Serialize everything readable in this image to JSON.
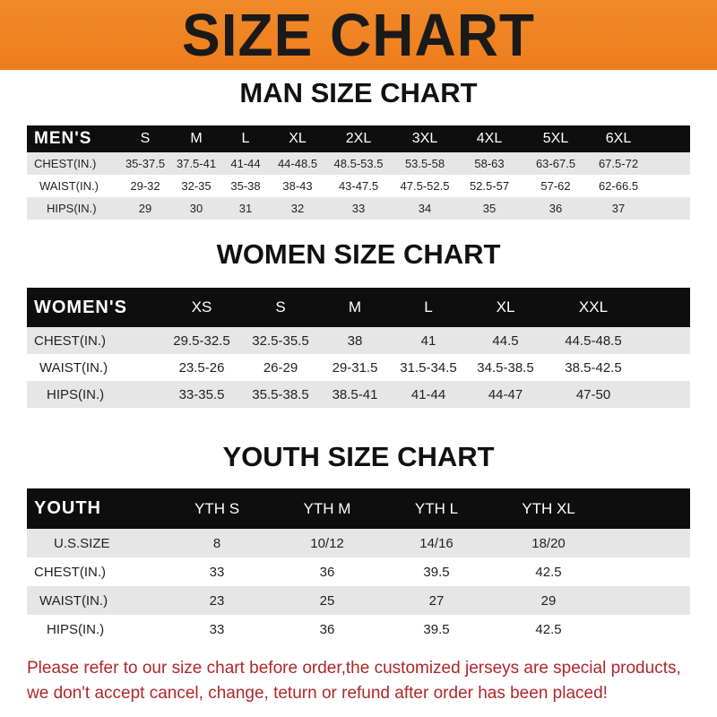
{
  "banner": "SIZE CHART",
  "men": {
    "title": "MAN SIZE CHART",
    "header": "MEN'S",
    "sizes": [
      "S",
      "M",
      "L",
      "XL",
      "2XL",
      "3XL",
      "4XL",
      "5XL",
      "6XL"
    ],
    "rows": [
      {
        "label": "CHEST(IN.)",
        "values": [
          "35-37.5",
          "37.5-41",
          "41-44",
          "44-48.5",
          "48.5-53.5",
          "53.5-58",
          "58-63",
          "63-67.5",
          "67.5-72"
        ]
      },
      {
        "label": "WAIST(IN.)",
        "values": [
          "29-32",
          "32-35",
          "35-38",
          "38-43",
          "43-47.5",
          "47.5-52.5",
          "52.5-57",
          "57-62",
          "62-66.5"
        ]
      },
      {
        "label": "HIPS(IN.)",
        "values": [
          "29",
          "30",
          "31",
          "32",
          "33",
          "34",
          "35",
          "36",
          "37"
        ]
      }
    ]
  },
  "women": {
    "title": "WOMEN SIZE CHART",
    "header": "WOMEN'S",
    "sizes": [
      "XS",
      "S",
      "M",
      "L",
      "XL",
      "XXL"
    ],
    "rows": [
      {
        "label": "CHEST(IN.)",
        "values": [
          "29.5-32.5",
          "32.5-35.5",
          "38",
          "41",
          "44.5",
          "44.5-48.5"
        ]
      },
      {
        "label": "WAIST(IN.)",
        "values": [
          "23.5-26",
          "26-29",
          "29-31.5",
          "31.5-34.5",
          "34.5-38.5",
          "38.5-42.5"
        ]
      },
      {
        "label": "HIPS(IN.)",
        "values": [
          "33-35.5",
          "35.5-38.5",
          "38.5-41",
          "41-44",
          "44-47",
          "47-50"
        ]
      }
    ]
  },
  "youth": {
    "title": "YOUTH SIZE CHART",
    "header": "YOUTH",
    "sizes": [
      "YTH S",
      "YTH M",
      "YTH L",
      "YTH XL"
    ],
    "rows": [
      {
        "label": "U.S.SIZE",
        "values": [
          "8",
          "10/12",
          "14/16",
          "18/20"
        ]
      },
      {
        "label": "CHEST(IN.)",
        "values": [
          "33",
          "36",
          "39.5",
          "42.5"
        ]
      },
      {
        "label": "WAIST(IN.)",
        "values": [
          "23",
          "25",
          "27",
          "29"
        ]
      },
      {
        "label": "HIPS(IN.)",
        "values": [
          "33",
          "36",
          "39.5",
          "42.5"
        ]
      }
    ]
  },
  "notice": [
    "Please refer to our size chart before order,the customized jerseys are special products,",
    "we don't accept cancel, change, teturn or refund after order has been placed!"
  ]
}
